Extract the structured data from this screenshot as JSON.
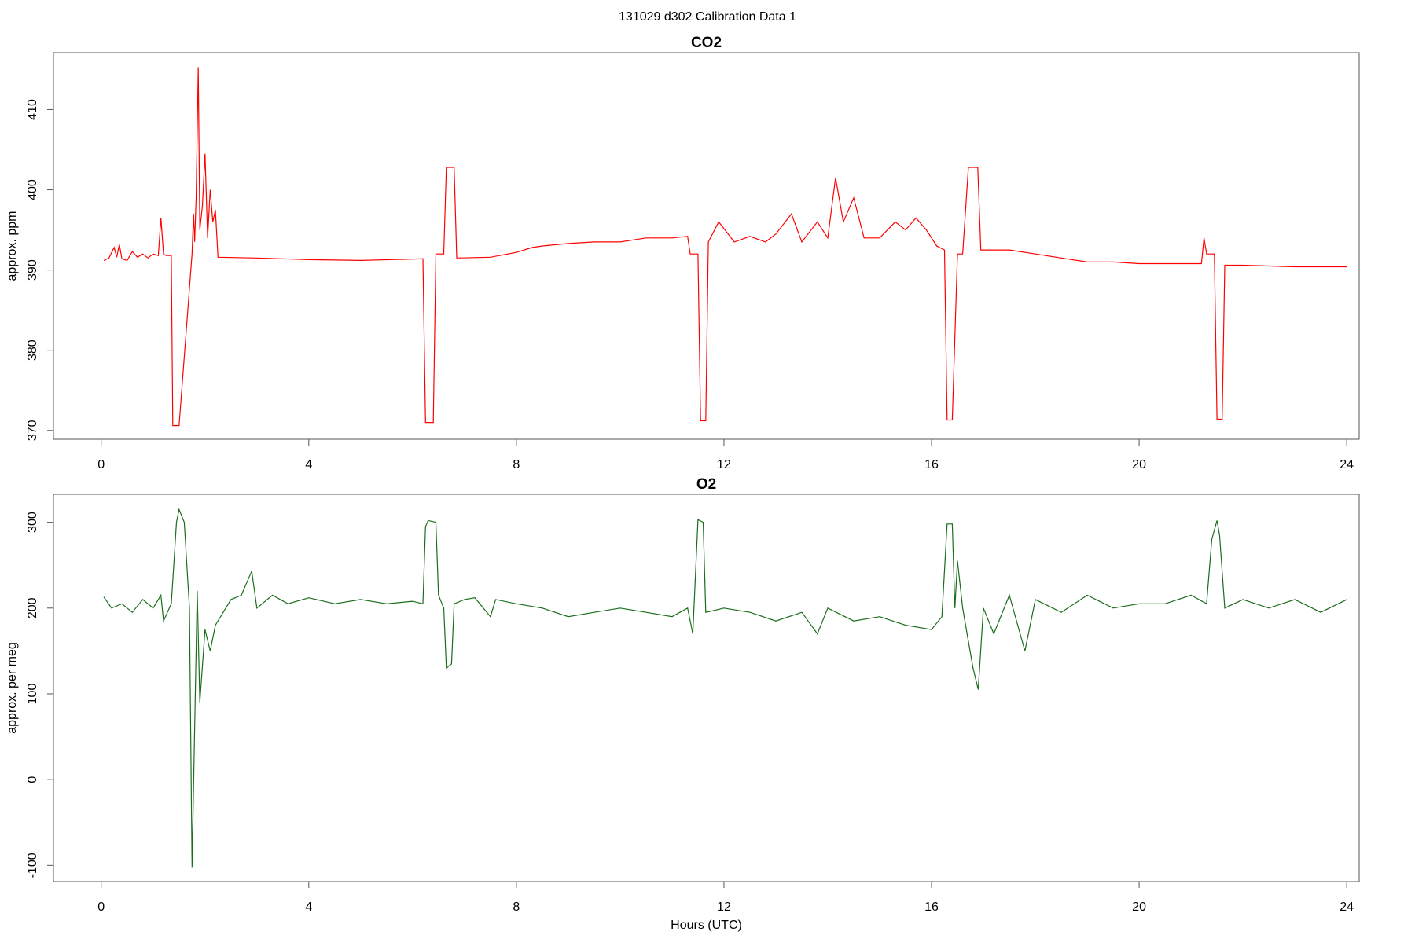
{
  "title": "131029   d302   Calibration Data 1",
  "chart_data": [
    {
      "type": "line",
      "title": "CO2",
      "y_label": "approx. ppm",
      "color": "#ff0000",
      "xlim": [
        -0.92,
        24.24
      ],
      "xticks": [
        0,
        4,
        8,
        12,
        16,
        20,
        24
      ],
      "ylim": [
        368.9,
        417.1
      ],
      "yticks": [
        370,
        380,
        390,
        400,
        410
      ],
      "x": [
        0.05,
        0.15,
        0.25,
        0.3,
        0.35,
        0.4,
        0.5,
        0.6,
        0.7,
        0.8,
        0.9,
        1.0,
        1.1,
        1.15,
        1.2,
        1.25,
        1.35,
        1.38,
        1.5,
        1.75,
        1.78,
        1.8,
        1.83,
        1.87,
        1.9,
        1.95,
        2.0,
        2.05,
        2.1,
        2.15,
        2.2,
        2.25,
        3.0,
        4.0,
        5.0,
        6.2,
        6.25,
        6.4,
        6.45,
        6.6,
        6.65,
        6.8,
        6.85,
        7.5,
        8.0,
        8.3,
        8.5,
        9.0,
        9.5,
        10.0,
        10.5,
        11.0,
        11.3,
        11.35,
        11.5,
        11.55,
        11.65,
        11.7,
        11.9,
        12.2,
        12.5,
        12.8,
        13.0,
        13.3,
        13.5,
        13.8,
        14.0,
        14.15,
        14.3,
        14.5,
        14.7,
        15.0,
        15.3,
        15.5,
        15.7,
        15.9,
        16.1,
        16.25,
        16.3,
        16.4,
        16.5,
        16.6,
        16.71,
        16.89,
        16.95,
        17.5,
        18.0,
        18.5,
        19.0,
        19.5,
        20.0,
        21.0,
        21.2,
        21.25,
        21.3,
        21.45,
        21.5,
        21.6,
        21.65,
        22.0,
        23.0,
        24.0
      ],
      "values": [
        391.2,
        391.5,
        392.8,
        391.6,
        393.2,
        391.4,
        391.2,
        392.3,
        391.6,
        392,
        391.5,
        392,
        391.8,
        396.5,
        392,
        391.8,
        391.8,
        370.6,
        370.6,
        392,
        397,
        393.5,
        399,
        415.3,
        395,
        398,
        404.5,
        394,
        400,
        396,
        397.5,
        391.6,
        391.5,
        391.3,
        391.2,
        391.4,
        371,
        371,
        392,
        392,
        402.8,
        402.8,
        391.5,
        391.6,
        392.2,
        392.8,
        393,
        393.3,
        393.5,
        393.5,
        394,
        394,
        394.2,
        392,
        392,
        371.2,
        371.2,
        393.5,
        396,
        393.5,
        394.2,
        393.5,
        394.5,
        397,
        393.5,
        396,
        394,
        401.5,
        396,
        399,
        394,
        394,
        396,
        395,
        396.5,
        395,
        393,
        392.5,
        371.3,
        371.3,
        392,
        392,
        402.8,
        402.8,
        392.5,
        392.5,
        392,
        391.5,
        391,
        391,
        390.8,
        390.8,
        390.8,
        394,
        392,
        392,
        371.4,
        371.4,
        390.6,
        390.6,
        390.4,
        390.4
      ]
    },
    {
      "type": "line",
      "title": "O2",
      "y_label": "approx. per meg",
      "x_label": "Hours (UTC)",
      "color": "#1a6e1a",
      "xlim": [
        -0.92,
        24.24
      ],
      "xticks": [
        0,
        4,
        8,
        12,
        16,
        20,
        24
      ],
      "ylim": [
        -118.9,
        332.6
      ],
      "yticks": [
        -100,
        0,
        100,
        200,
        300
      ],
      "x": [
        0.05,
        0.2,
        0.4,
        0.6,
        0.8,
        1.0,
        1.15,
        1.2,
        1.35,
        1.45,
        1.5,
        1.6,
        1.7,
        1.75,
        1.85,
        1.9,
        2.0,
        2.1,
        2.2,
        2.3,
        2.5,
        2.7,
        2.9,
        3.0,
        3.3,
        3.6,
        4.0,
        4.5,
        5.0,
        5.5,
        6.0,
        6.2,
        6.25,
        6.3,
        6.45,
        6.5,
        6.6,
        6.65,
        6.75,
        6.8,
        7.0,
        7.2,
        7.5,
        7.6,
        8.0,
        8.5,
        9.0,
        9.5,
        10.0,
        10.5,
        11.0,
        11.3,
        11.4,
        11.5,
        11.6,
        11.65,
        12.0,
        12.5,
        13.0,
        13.5,
        13.8,
        14.0,
        14.5,
        15.0,
        15.5,
        16.0,
        16.2,
        16.3,
        16.4,
        16.45,
        16.5,
        16.6,
        16.8,
        16.9,
        17.0,
        17.2,
        17.5,
        17.8,
        18.0,
        18.5,
        19.0,
        19.5,
        20.0,
        20.5,
        21.0,
        21.3,
        21.4,
        21.5,
        21.55,
        21.65,
        22.0,
        22.5,
        23.0,
        23.5,
        24.0
      ],
      "values": [
        213,
        200,
        205,
        195,
        210,
        200,
        215,
        185,
        205,
        300,
        315,
        300,
        200,
        -102,
        220,
        90,
        175,
        150,
        180,
        190,
        210,
        215,
        243,
        200,
        215,
        205,
        212,
        205,
        210,
        205,
        208,
        205,
        295,
        302,
        300,
        215,
        200,
        130,
        135,
        205,
        210,
        212,
        190,
        210,
        205,
        200,
        190,
        195,
        200,
        195,
        190,
        200,
        170,
        303,
        300,
        195,
        200,
        195,
        185,
        195,
        170,
        200,
        185,
        190,
        180,
        175,
        190,
        298,
        298,
        200,
        255,
        200,
        130,
        105,
        200,
        170,
        215,
        150,
        210,
        195,
        215,
        200,
        205,
        205,
        215,
        205,
        280,
        302,
        285,
        200,
        210,
        200,
        210,
        195,
        210
      ]
    }
  ]
}
